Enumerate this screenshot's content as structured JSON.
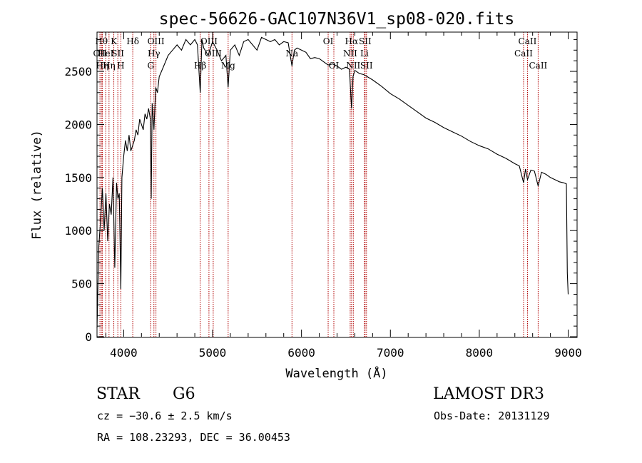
{
  "chart_data": {
    "type": "line",
    "title": "spec-56626-GAC107N36V1_sp08-020.fits",
    "xlabel": "Wavelength (Å)",
    "ylabel": "Flux (relative)",
    "xlim": [
      3700,
      9100
    ],
    "ylim": [
      0,
      2870
    ],
    "xticks": [
      "4000",
      "5000",
      "6000",
      "7000",
      "8000",
      "9000"
    ],
    "yticks": [
      "0",
      "500",
      "1000",
      "1500",
      "2000",
      "2500"
    ],
    "series": [
      {
        "name": "flux",
        "x": [
          3700,
          3720,
          3740,
          3760,
          3780,
          3800,
          3820,
          3840,
          3860,
          3880,
          3900,
          3920,
          3935,
          3950,
          3968,
          3980,
          4000,
          4020,
          4040,
          4060,
          4080,
          4100,
          4120,
          4140,
          4160,
          4180,
          4200,
          4220,
          4240,
          4260,
          4280,
          4300,
          4310,
          4320,
          4340,
          4360,
          4380,
          4400,
          4450,
          4500,
          4550,
          4600,
          4650,
          4700,
          4750,
          4800,
          4830,
          4861,
          4880,
          4900,
          4950,
          5000,
          5050,
          5100,
          5150,
          5175,
          5200,
          5250,
          5300,
          5350,
          5400,
          5450,
          5500,
          5550,
          5600,
          5650,
          5700,
          5750,
          5800,
          5850,
          5893,
          5920,
          5950,
          6000,
          6050,
          6100,
          6150,
          6200,
          6250,
          6300,
          6350,
          6400,
          6450,
          6500,
          6540,
          6563,
          6580,
          6600,
          6650,
          6700,
          6800,
          6900,
          7000,
          7100,
          7200,
          7300,
          7400,
          7500,
          7600,
          7700,
          7800,
          7900,
          8000,
          8100,
          8200,
          8300,
          8400,
          8450,
          8498,
          8520,
          8542,
          8580,
          8620,
          8662,
          8700,
          8750,
          8800,
          8850,
          8900,
          8950,
          8980,
          8990,
          9000
        ],
        "values": [
          80,
          850,
          1100,
          1400,
          1000,
          1350,
          900,
          1250,
          1150,
          1500,
          650,
          1450,
          1300,
          1350,
          450,
          1500,
          1700,
          1850,
          1750,
          1900,
          1750,
          1800,
          1850,
          1950,
          1900,
          2050,
          2000,
          1950,
          2100,
          2050,
          2150,
          2050,
          1300,
          2200,
          1950,
          2350,
          2300,
          2450,
          2550,
          2650,
          2700,
          2750,
          2700,
          2800,
          2750,
          2800,
          2750,
          2300,
          2800,
          2720,
          2650,
          2780,
          2700,
          2600,
          2650,
          2350,
          2700,
          2750,
          2650,
          2780,
          2800,
          2750,
          2700,
          2820,
          2800,
          2780,
          2800,
          2750,
          2780,
          2770,
          2550,
          2700,
          2720,
          2700,
          2680,
          2620,
          2630,
          2620,
          2590,
          2560,
          2570,
          2550,
          2520,
          2540,
          2520,
          2150,
          2450,
          2510,
          2480,
          2470,
          2420,
          2360,
          2290,
          2240,
          2180,
          2120,
          2060,
          2020,
          1970,
          1930,
          1890,
          1840,
          1800,
          1770,
          1720,
          1680,
          1630,
          1610,
          1450,
          1580,
          1480,
          1570,
          1560,
          1420,
          1550,
          1530,
          1500,
          1480,
          1460,
          1450,
          1440,
          600,
          400
        ]
      }
    ],
    "line_labels": [
      {
        "wave": 3750,
        "text": "Hθ",
        "row": 1
      },
      {
        "wave": 3733,
        "text": "OII",
        "row": 2
      },
      {
        "wave": 3760,
        "text": "Hη",
        "row": 3
      },
      {
        "wave": 3798,
        "text": "HeI",
        "row": 2
      },
      {
        "wave": 3835,
        "text": "Hη",
        "row": 3
      },
      {
        "wave": 3889,
        "text": "K",
        "row": 1
      },
      {
        "wave": 3934,
        "text": "SII",
        "row": 2
      },
      {
        "wave": 3968,
        "text": "H",
        "row": 3
      },
      {
        "wave": 4102,
        "text": "Hδ",
        "row": 1
      },
      {
        "wave": 4304,
        "text": "G",
        "row": 3
      },
      {
        "wave": 4340,
        "text": "Hγ",
        "row": 2
      },
      {
        "wave": 4363,
        "text": "OIII",
        "row": 1
      },
      {
        "wave": 4861,
        "text": "Hβ",
        "row": 3
      },
      {
        "wave": 4959,
        "text": "OIII",
        "row": 1
      },
      {
        "wave": 5007,
        "text": "OIII",
        "row": 2
      },
      {
        "wave": 5175,
        "text": "Mg",
        "row": 3
      },
      {
        "wave": 5893,
        "text": "Na",
        "row": 2
      },
      {
        "wave": 6300,
        "text": "OI",
        "row": 1
      },
      {
        "wave": 6364,
        "text": "OI",
        "row": 3
      },
      {
        "wave": 6548,
        "text": "NII",
        "row": 2
      },
      {
        "wave": 6563,
        "text": "Hα",
        "row": 1
      },
      {
        "wave": 6583,
        "text": "NII",
        "row": 3
      },
      {
        "wave": 6708,
        "text": "Li",
        "row": 2
      },
      {
        "wave": 6716,
        "text": "SII",
        "row": 1
      },
      {
        "wave": 6731,
        "text": "SII",
        "row": 3
      },
      {
        "wave": 8498,
        "text": "CaII",
        "row": 2
      },
      {
        "wave": 8542,
        "text": "CaII",
        "row": 1
      },
      {
        "wave": 8662,
        "text": "CaII",
        "row": 3
      }
    ]
  },
  "info": {
    "class": "STAR",
    "subclass": "G6",
    "redshift": "cz = −30.6 ± 2.5 km/s",
    "coords": "RA = 108.23293, DEC =  36.00453",
    "survey": "LAMOST DR3",
    "obs_date": "Obs-Date: 20131129"
  },
  "colors": {
    "line_marker": "#b00000",
    "spectrum": "#000000"
  }
}
